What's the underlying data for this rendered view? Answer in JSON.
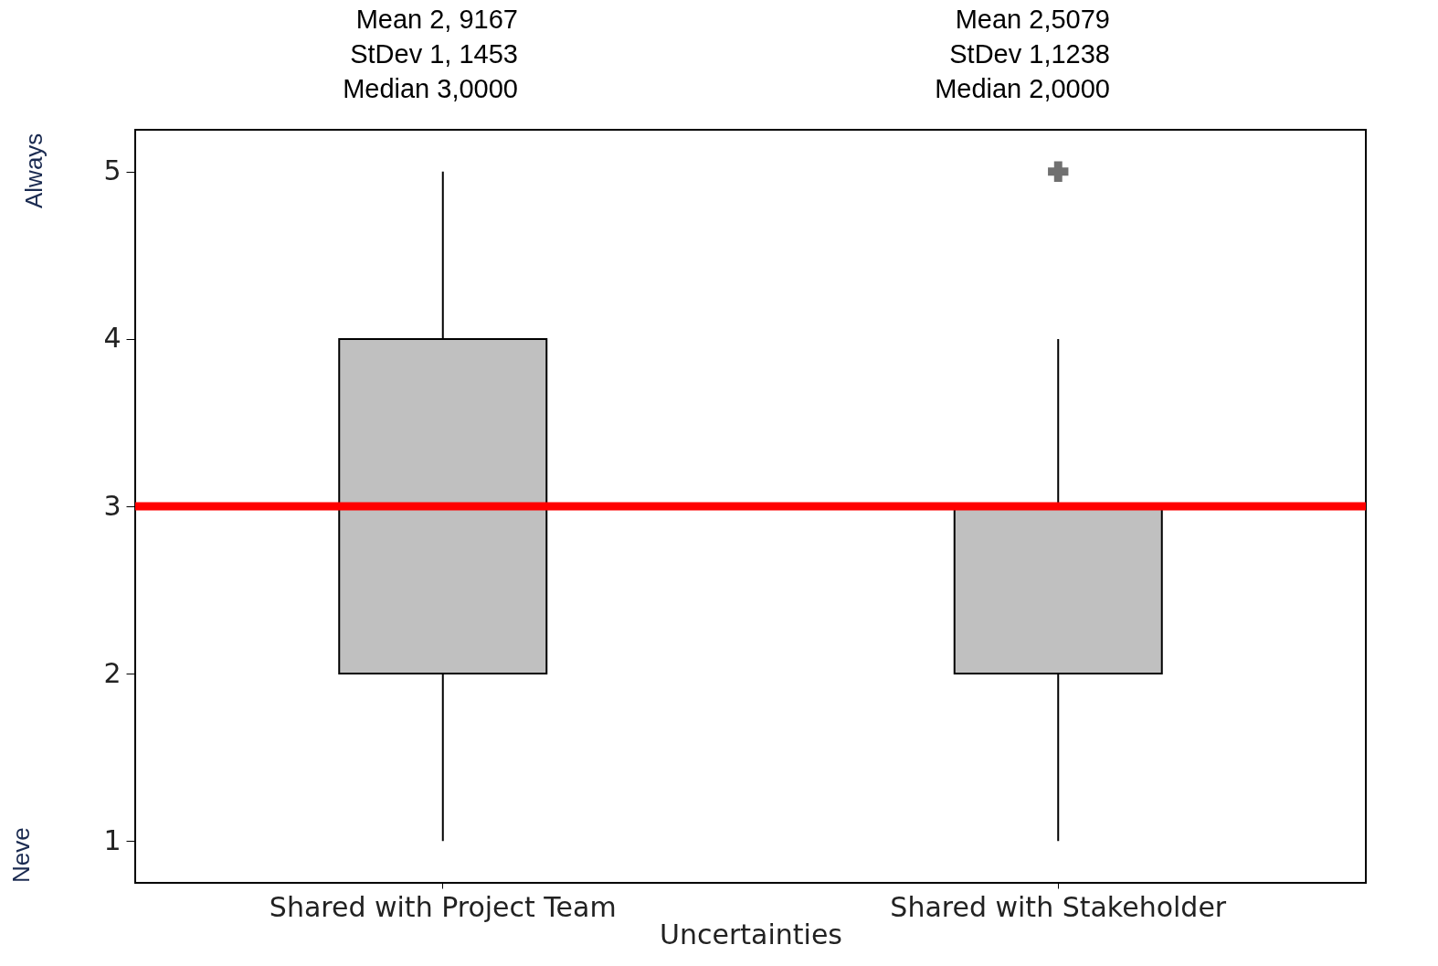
{
  "chart_data": {
    "type": "box",
    "xlabel": "Uncertainties",
    "categories": [
      "Shared with Project Team",
      "Shared with Stakeholder"
    ],
    "series": [
      {
        "color": "#c0c0c0",
        "boxes": [
          {
            "low": 1,
            "q1": 2,
            "median": 3,
            "q3": 4,
            "high": 5
          },
          {
            "low": 1,
            "q1": 2,
            "median": 2,
            "q3": 3,
            "high": 4,
            "outliers": [
              5
            ]
          }
        ]
      }
    ],
    "marker": "cross",
    "ylim": [
      0.75,
      5.25
    ],
    "yticks": [
      1,
      2,
      3,
      4,
      5
    ],
    "ref_lines": [
      {
        "axis": "y",
        "value": 3,
        "color": "#ff0000"
      }
    ],
    "annotations": [
      "Mean 2, 9167\nStDev 1, 1453\nMedian 3,0000",
      "Mean 2,5079\nStDev 1,1238\nMedian 2,0000",
      "Always",
      "Neve"
    ]
  }
}
